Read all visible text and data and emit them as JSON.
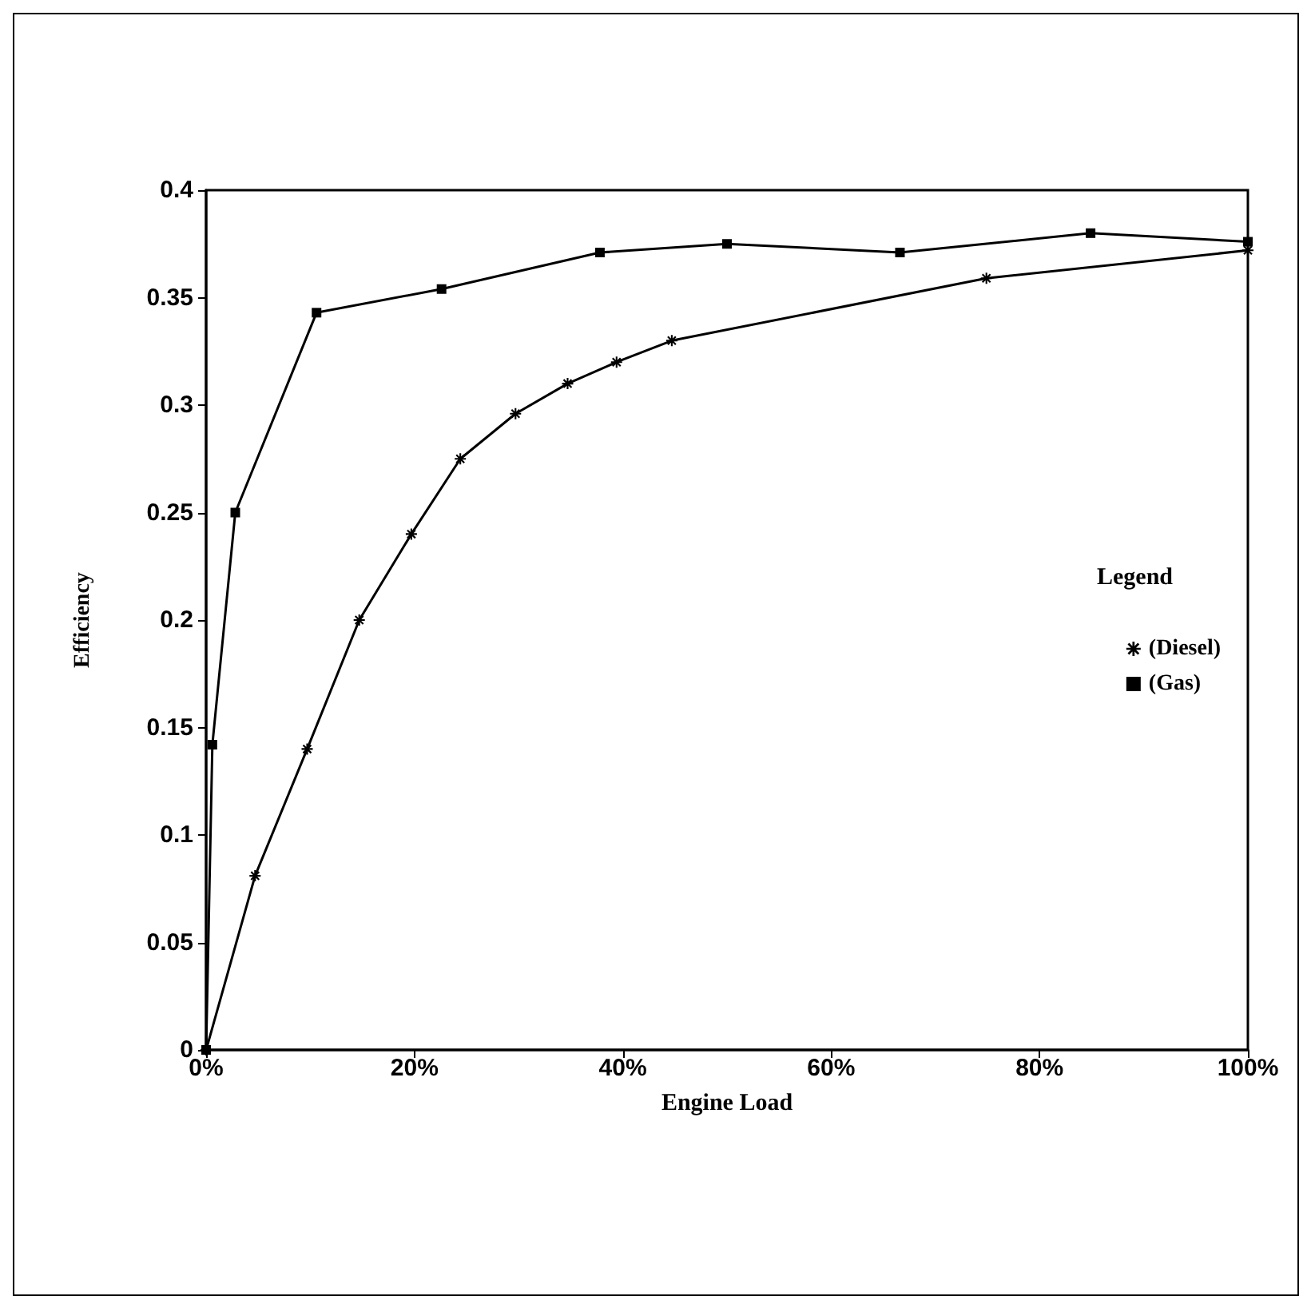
{
  "chart_data": {
    "type": "line",
    "xlabel": "Engine Load",
    "ylabel": "Efficiency",
    "legend_title": "Legend",
    "legend": "right",
    "grid": false,
    "xlim": [
      0,
      100
    ],
    "xticks": [
      {
        "value": 0,
        "label": "0%"
      },
      {
        "value": 20,
        "label": "20%"
      },
      {
        "value": 40,
        "label": "40%"
      },
      {
        "value": 60,
        "label": "60%"
      },
      {
        "value": 80,
        "label": "80%"
      },
      {
        "value": 100,
        "label": "100%"
      }
    ],
    "ylim": [
      0,
      0.4
    ],
    "yticks": [
      0,
      0.05,
      0.1,
      0.15,
      0.2,
      0.25,
      0.3,
      0.35,
      0.4
    ],
    "series": [
      {
        "name": "(Diesel)",
        "color": "#000000",
        "marker": "star",
        "x": [
          0,
          4.7,
          9.7,
          14.7,
          19.7,
          24.4,
          29.7,
          34.7,
          39.4,
          44.7,
          74.9,
          100
        ],
        "values": [
          0,
          0.081,
          0.14,
          0.2,
          0.24,
          0.275,
          0.296,
          0.31,
          0.32,
          0.33,
          0.359,
          0.372
        ]
      },
      {
        "name": "(Gas)",
        "color": "#000000",
        "marker": "square",
        "x": [
          0,
          0.6,
          2.8,
          10.6,
          22.6,
          37.8,
          50,
          66.6,
          84.9,
          100
        ],
        "values": [
          0,
          0.142,
          0.25,
          0.343,
          0.354,
          0.371,
          0.375,
          0.371,
          0.38,
          0.376
        ]
      }
    ]
  }
}
